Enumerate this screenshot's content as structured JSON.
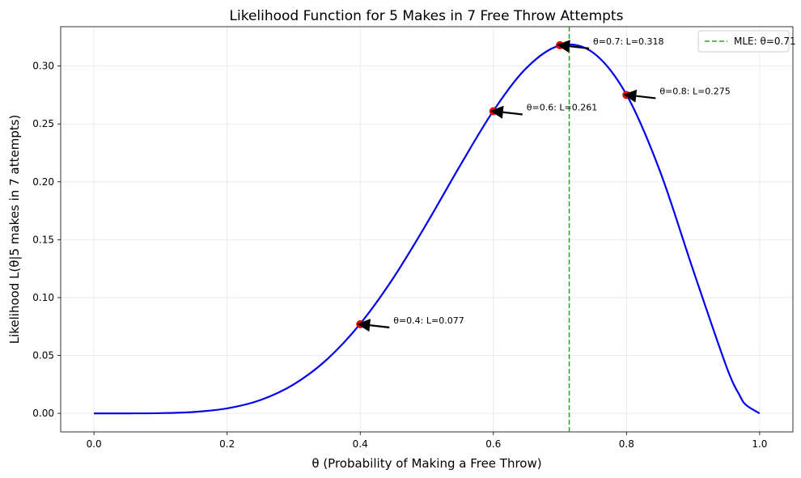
{
  "chart_data": {
    "type": "line",
    "title": "Likelihood Function for 5 Makes in 7 Free Throw Attempts",
    "xlabel": "θ (Probability of Making a Free Throw)",
    "ylabel": "Likelihood L(θ|5 makes in 7 attempts)",
    "xlim": [
      -0.05,
      1.05
    ],
    "ylim": [
      -0.016,
      0.334
    ],
    "xticks": [
      0.0,
      0.2,
      0.4,
      0.6,
      0.8,
      1.0
    ],
    "xtick_labels": [
      "0.0",
      "0.2",
      "0.4",
      "0.6",
      "0.8",
      "1.0"
    ],
    "yticks": [
      0.0,
      0.05,
      0.1,
      0.15,
      0.2,
      0.25,
      0.3
    ],
    "ytick_labels": [
      "0.00",
      "0.05",
      "0.10",
      "0.15",
      "0.20",
      "0.25",
      "0.30"
    ],
    "grid": true,
    "legend_position": "top-right",
    "curve": {
      "color": "#0000ee",
      "points": [
        [
          0.0,
          0.0
        ],
        [
          0.05,
          0.0
        ],
        [
          0.1,
          0.0002
        ],
        [
          0.15,
          0.0012
        ],
        [
          0.2,
          0.0043
        ],
        [
          0.25,
          0.0115
        ],
        [
          0.3,
          0.025
        ],
        [
          0.35,
          0.0466
        ],
        [
          0.4,
          0.0774
        ],
        [
          0.45,
          0.1172
        ],
        [
          0.5,
          0.1641
        ],
        [
          0.55,
          0.214
        ],
        [
          0.6,
          0.2613
        ],
        [
          0.65,
          0.2985
        ],
        [
          0.7,
          0.3177
        ],
        [
          0.75,
          0.3115
        ],
        [
          0.8,
          0.2753
        ],
        [
          0.85,
          0.2097
        ],
        [
          0.9,
          0.124
        ],
        [
          0.95,
          0.0406
        ],
        [
          0.97,
          0.0155
        ],
        [
          0.98,
          0.0071
        ],
        [
          1.0,
          0.0
        ]
      ]
    },
    "mle_line": {
      "x": 0.714,
      "color": "#2ca02c",
      "legend_label": "MLE: θ=0.71"
    },
    "highlighted_points": [
      {
        "x": 0.4,
        "y": 0.077,
        "label": "θ=0.4: L=0.077"
      },
      {
        "x": 0.6,
        "y": 0.261,
        "label": "θ=0.6: L=0.261"
      },
      {
        "x": 0.7,
        "y": 0.318,
        "label": "θ=0.7: L=0.318"
      },
      {
        "x": 0.8,
        "y": 0.275,
        "label": "θ=0.8: L=0.275"
      }
    ],
    "point_color": "#ee0000",
    "arrow_color": "#000000"
  }
}
